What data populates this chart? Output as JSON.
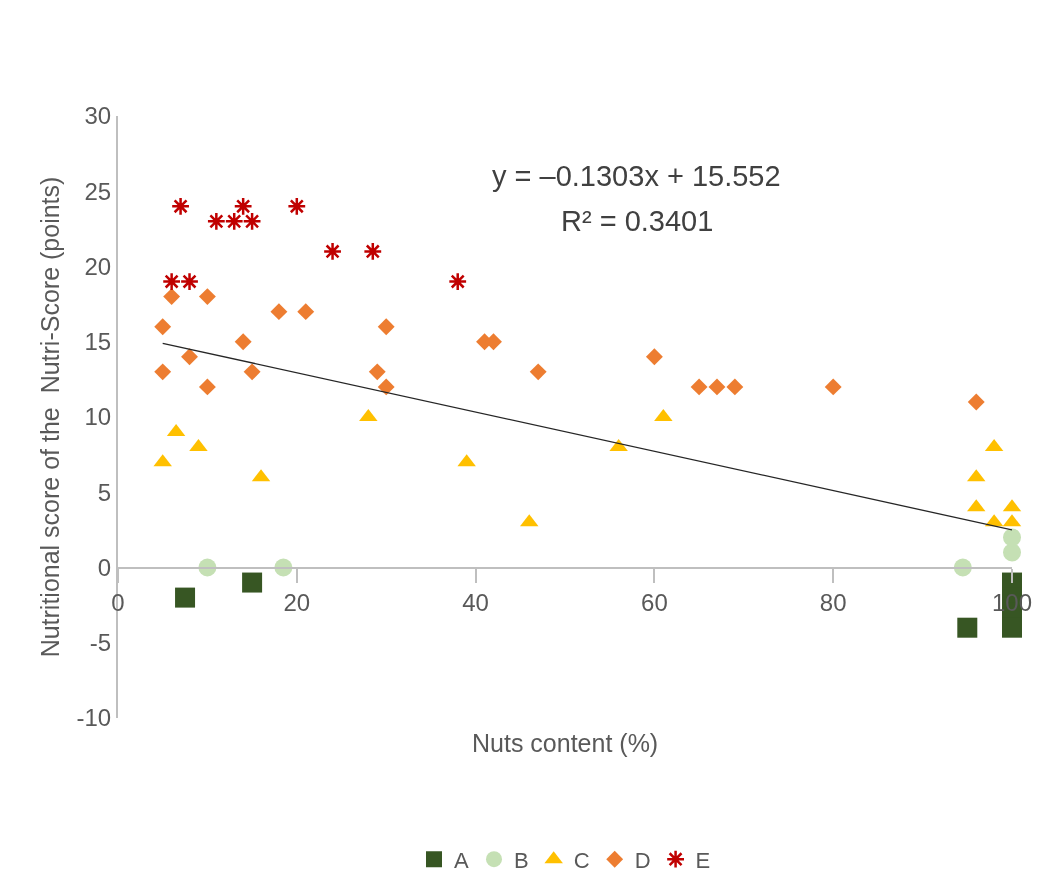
{
  "chart_data": {
    "type": "scatter",
    "xlabel": "Nuts content (%)",
    "ylabel": "Nutritional score of the  Nutri-Score (points)",
    "xlim": [
      0,
      100
    ],
    "xticks": [
      0,
      20,
      40,
      60,
      80,
      100
    ],
    "ylim": [
      -10,
      30
    ],
    "yticks": [
      -10,
      -5,
      0,
      5,
      10,
      15,
      20,
      25,
      30
    ],
    "grid": false,
    "legend": "bottom",
    "annotations": [
      "y = –0.1303x + 15.552",
      "R² = 0.3401"
    ],
    "series": [
      {
        "name": "A",
        "color": "#375623",
        "marker": "square",
        "x": [
          7.5,
          15,
          95,
          100,
          100,
          100,
          100
        ],
        "values": [
          -2,
          -1,
          -4,
          -1,
          -2,
          -3,
          -4
        ]
      },
      {
        "name": "B",
        "color": "#c5e0b4",
        "marker": "circle",
        "x": [
          10,
          18.5,
          94.5,
          100,
          100
        ],
        "values": [
          0,
          0,
          0,
          1,
          2
        ]
      },
      {
        "name": "C",
        "color": "#ffc000",
        "marker": "triangle",
        "x": [
          5,
          6.5,
          9,
          16,
          28,
          39,
          46,
          56,
          61,
          96,
          96,
          98,
          98,
          100,
          100
        ],
        "values": [
          7,
          9,
          8,
          6,
          10,
          7,
          3,
          8,
          10,
          6,
          4,
          8,
          3,
          4,
          3
        ]
      },
      {
        "name": "D",
        "color": "#ed7d31",
        "marker": "diamond",
        "x": [
          5,
          5,
          6,
          8,
          10,
          10,
          14,
          15,
          18,
          21,
          29,
          30,
          30,
          41,
          42,
          47,
          60,
          65,
          67,
          69,
          80,
          96
        ],
        "values": [
          16,
          13,
          18,
          14,
          18,
          12,
          15,
          13,
          17,
          17,
          13,
          16,
          12,
          15,
          15,
          13,
          14,
          12,
          12,
          12,
          12,
          11
        ]
      },
      {
        "name": "E",
        "color": "#c00000",
        "marker": "cross",
        "x": [
          6,
          8,
          7,
          11,
          13,
          14,
          15,
          20,
          24,
          28.5,
          38
        ],
        "values": [
          19,
          19,
          24,
          23,
          23,
          24,
          23,
          24,
          21,
          21,
          19
        ]
      },
      {
        "type": "line",
        "color": "#262626",
        "marker": "none",
        "line_style": "solid",
        "x": [
          5,
          100
        ],
        "values": [
          14.9,
          2.5
        ]
      }
    ]
  }
}
